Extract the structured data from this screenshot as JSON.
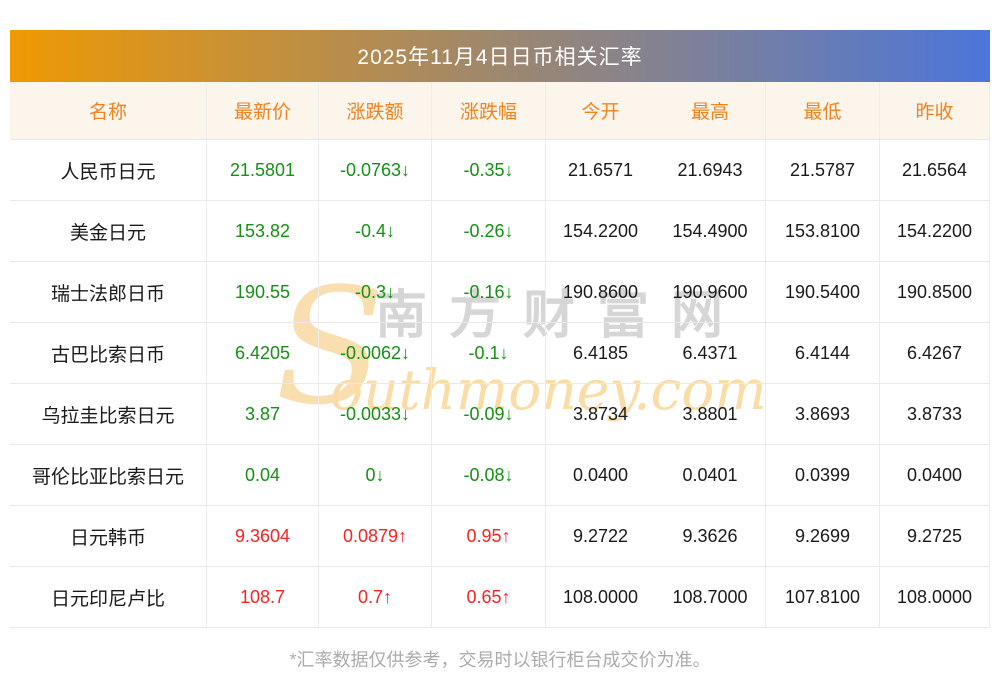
{
  "title": "2025年11月4日日币相关汇率",
  "chart_data": {
    "type": "table",
    "title": "2025年11月4日日币相关汇率",
    "columns": [
      "名称",
      "最新价",
      "涨跌额",
      "涨跌幅",
      "今开",
      "最高",
      "最低",
      "昨收"
    ],
    "rows": [
      {
        "name": "人民币日元",
        "last": "21.5801",
        "change": "-0.0763↓",
        "pct": "-0.35↓",
        "open": "21.6571",
        "high": "21.6943",
        "low": "21.5787",
        "prev": "21.6564",
        "trend": "down"
      },
      {
        "name": "美金日元",
        "last": "153.82",
        "change": "-0.4↓",
        "pct": "-0.26↓",
        "open": "154.2200",
        "high": "154.4900",
        "low": "153.8100",
        "prev": "154.2200",
        "trend": "down"
      },
      {
        "name": "瑞士法郎日币",
        "last": "190.55",
        "change": "-0.3↓",
        "pct": "-0.16↓",
        "open": "190.8600",
        "high": "190.9600",
        "low": "190.5400",
        "prev": "190.8500",
        "trend": "down"
      },
      {
        "name": "古巴比索日币",
        "last": "6.4205",
        "change": "-0.0062↓",
        "pct": "-0.1↓",
        "open": "6.4185",
        "high": "6.4371",
        "low": "6.4144",
        "prev": "6.4267",
        "trend": "down"
      },
      {
        "name": "乌拉圭比索日元",
        "last": "3.87",
        "change": "-0.0033↓",
        "pct": "-0.09↓",
        "open": "3.8734",
        "high": "3.8801",
        "low": "3.8693",
        "prev": "3.8733",
        "trend": "down"
      },
      {
        "name": "哥伦比亚比索日元",
        "last": "0.04",
        "change": "0↓",
        "pct": "-0.08↓",
        "open": "0.0400",
        "high": "0.0401",
        "low": "0.0399",
        "prev": "0.0400",
        "trend": "down"
      },
      {
        "name": "日元韩币",
        "last": "9.3604",
        "change": "0.0879↑",
        "pct": "0.95↑",
        "open": "9.2722",
        "high": "9.3626",
        "low": "9.2699",
        "prev": "9.2725",
        "trend": "up"
      },
      {
        "name": "日元印尼卢比",
        "last": "108.7",
        "change": "0.7↑",
        "pct": "0.65↑",
        "open": "108.0000",
        "high": "108.7000",
        "low": "107.8100",
        "prev": "108.0000",
        "trend": "up"
      }
    ]
  },
  "footer": "*汇率数据仅供参考，交易时以银行柜台成交价为准。",
  "watermark": {
    "s": "S",
    "cn": "南方财富网",
    "en": "outhmoney.com"
  },
  "colors": {
    "gradient_left": "#EF9903",
    "gradient_right": "#4C76DA",
    "header_bg": "#FCF5EC",
    "header_text": "#F0831D",
    "down_green": "#149014",
    "up_red": "#FB2222"
  }
}
